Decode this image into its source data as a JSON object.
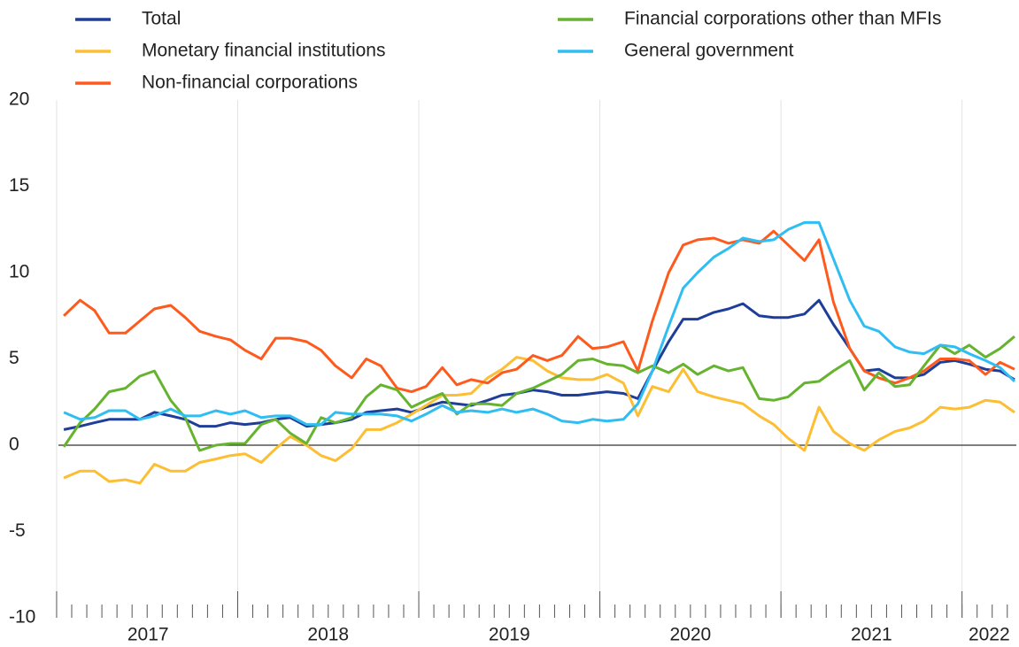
{
  "chart_data": {
    "type": "line",
    "x": [
      2017.04,
      2017.13,
      2017.21,
      2017.29,
      2017.38,
      2017.46,
      2017.54,
      2017.63,
      2017.71,
      2017.79,
      2017.88,
      2017.96,
      2018.04,
      2018.13,
      2018.21,
      2018.29,
      2018.38,
      2018.46,
      2018.54,
      2018.63,
      2018.71,
      2018.79,
      2018.88,
      2018.96,
      2019.04,
      2019.13,
      2019.21,
      2019.29,
      2019.38,
      2019.46,
      2019.54,
      2019.63,
      2019.71,
      2019.79,
      2019.88,
      2019.96,
      2020.04,
      2020.13,
      2020.21,
      2020.29,
      2020.38,
      2020.46,
      2020.54,
      2020.63,
      2020.71,
      2020.79,
      2020.88,
      2020.96,
      2021.04,
      2021.13,
      2021.21,
      2021.29,
      2021.38,
      2021.46,
      2021.54,
      2021.63,
      2021.71,
      2021.79,
      2021.88,
      2021.96,
      2022.04,
      2022.13,
      2022.21,
      2022.29
    ],
    "series": [
      {
        "name": "Total",
        "color": "#1f3e99",
        "values": [
          0.9,
          1.1,
          1.3,
          1.5,
          1.5,
          1.5,
          1.9,
          1.7,
          1.5,
          1.1,
          1.1,
          1.3,
          1.2,
          1.3,
          1.5,
          1.6,
          1.1,
          1.2,
          1.3,
          1.5,
          1.9,
          2.0,
          2.1,
          1.9,
          2.2,
          2.5,
          2.4,
          2.3,
          2.6,
          2.9,
          3.0,
          3.2,
          3.1,
          2.9,
          2.9,
          3.0,
          3.1,
          3.0,
          2.7,
          4.3,
          6.0,
          7.3,
          7.3,
          7.7,
          7.9,
          8.2,
          7.5,
          7.4,
          7.4,
          7.6,
          8.4,
          7.0,
          5.6,
          4.3,
          4.4,
          3.9,
          3.9,
          4.1,
          4.8,
          4.9,
          4.7,
          4.4,
          4.3,
          3.8
        ]
      },
      {
        "name": "Monetary financial institutions",
        "color": "#fcbe32",
        "values": [
          -1.9,
          -1.5,
          -1.5,
          -2.1,
          -2.0,
          -2.2,
          -1.1,
          -1.5,
          -1.5,
          -1.0,
          -0.8,
          -0.6,
          -0.5,
          -1.0,
          -0.2,
          0.5,
          0.0,
          -0.6,
          -0.9,
          -0.2,
          0.9,
          0.9,
          1.3,
          1.8,
          2.3,
          2.9,
          2.9,
          3.0,
          3.9,
          4.4,
          5.1,
          4.9,
          4.3,
          3.9,
          3.8,
          3.8,
          4.1,
          3.6,
          1.7,
          3.4,
          3.1,
          4.4,
          3.1,
          2.8,
          2.6,
          2.4,
          1.7,
          1.2,
          0.4,
          -0.3,
          2.2,
          0.8,
          0.1,
          -0.3,
          0.3,
          0.8,
          1.0,
          1.4,
          2.2,
          2.1,
          2.2,
          2.6,
          2.5,
          1.9
        ]
      },
      {
        "name": "Non-financial corporations",
        "color": "#ff5a1e",
        "values": [
          7.5,
          8.4,
          7.8,
          6.5,
          6.5,
          7.2,
          7.9,
          8.1,
          7.4,
          6.6,
          6.3,
          6.1,
          5.5,
          5.0,
          6.2,
          6.2,
          6.0,
          5.5,
          4.6,
          3.9,
          5.0,
          4.6,
          3.3,
          3.1,
          3.4,
          4.5,
          3.5,
          3.8,
          3.6,
          4.2,
          4.4,
          5.2,
          4.9,
          5.2,
          6.3,
          5.6,
          5.7,
          6.0,
          4.3,
          7.2,
          10.0,
          11.6,
          11.9,
          12.0,
          11.7,
          11.9,
          11.7,
          12.4,
          11.6,
          10.7,
          11.9,
          8.3,
          5.6,
          4.3,
          3.9,
          3.6,
          3.9,
          4.3,
          5.0,
          5.0,
          4.9,
          4.1,
          4.8,
          4.4
        ]
      },
      {
        "name": "Financial corporations other than MFIs",
        "color": "#65b32e",
        "values": [
          -0.1,
          1.3,
          2.1,
          3.1,
          3.3,
          4.0,
          4.3,
          2.6,
          1.6,
          -0.3,
          0.0,
          0.1,
          0.1,
          1.2,
          1.5,
          0.7,
          0.1,
          1.6,
          1.3,
          1.6,
          2.8,
          3.5,
          3.2,
          2.2,
          2.6,
          3.0,
          1.8,
          2.4,
          2.4,
          2.3,
          3.0,
          3.3,
          3.7,
          4.1,
          4.9,
          5.0,
          4.7,
          4.6,
          4.2,
          4.6,
          4.2,
          4.7,
          4.1,
          4.6,
          4.3,
          4.5,
          2.7,
          2.6,
          2.8,
          3.6,
          3.7,
          4.3,
          4.9,
          3.2,
          4.2,
          3.4,
          3.5,
          4.6,
          5.8,
          5.3,
          5.8,
          5.1,
          5.6,
          6.3
        ]
      },
      {
        "name": "General government",
        "color": "#2fbdf2",
        "values": [
          1.9,
          1.5,
          1.6,
          2.0,
          2.0,
          1.5,
          1.7,
          2.1,
          1.7,
          1.7,
          2.0,
          1.8,
          2.0,
          1.6,
          1.7,
          1.7,
          1.2,
          1.2,
          1.9,
          1.8,
          1.8,
          1.8,
          1.7,
          1.4,
          1.8,
          2.3,
          1.9,
          2.0,
          1.9,
          2.1,
          1.9,
          2.1,
          1.8,
          1.4,
          1.3,
          1.5,
          1.4,
          1.5,
          2.4,
          4.3,
          6.9,
          9.1,
          10.0,
          10.9,
          11.4,
          12.0,
          11.8,
          11.9,
          12.5,
          12.9,
          12.9,
          10.8,
          8.4,
          6.9,
          6.6,
          5.7,
          5.4,
          5.3,
          5.8,
          5.7,
          5.3,
          4.9,
          4.5,
          3.7
        ]
      }
    ],
    "xlim": [
      2017.01,
      2022.3
    ],
    "xticks": [
      2017,
      2018,
      2019,
      2020,
      2021,
      2022
    ],
    "ylim": [
      -10,
      20
    ],
    "yticks": [
      -10,
      -5,
      0,
      5,
      10,
      15,
      20
    ],
    "grid": true
  }
}
